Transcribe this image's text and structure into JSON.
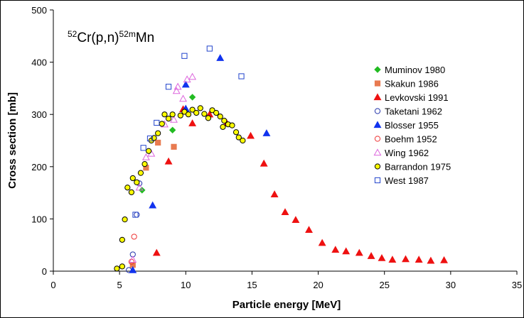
{
  "chart_data": {
    "type": "scatter",
    "title_parts": {
      "pre_sup": "52",
      "reaction": "Cr(p,n)",
      "post_sup": "52m",
      "product": "Mn"
    },
    "xlabel": "Particle  energy [MeV]",
    "ylabel": "Cross section [mb]",
    "xlim": [
      0,
      35
    ],
    "ylim": [
      0,
      500
    ],
    "xticks": [
      "0",
      "5",
      "10",
      "15",
      "20",
      "25",
      "30",
      "35"
    ],
    "yticks": [
      "0",
      "100",
      "200",
      "300",
      "400",
      "500"
    ],
    "legend_position": "right",
    "series": [
      {
        "name": "Muminov 1980",
        "marker": "diamond",
        "color": "#22bb22",
        "fill": true,
        "points": [
          [
            6.7,
            155
          ],
          [
            9.0,
            270
          ],
          [
            10.5,
            333
          ]
        ]
      },
      {
        "name": "Skakun 1986",
        "marker": "square",
        "color": "#e87a50",
        "fill": true,
        "points": [
          [
            6.0,
            12
          ],
          [
            7.0,
            198
          ],
          [
            7.9,
            246
          ],
          [
            9.1,
            238
          ]
        ]
      },
      {
        "name": "Levkovski 1991",
        "marker": "triangle",
        "color": "#ee1111",
        "fill": true,
        "points": [
          [
            7.8,
            35
          ],
          [
            8.7,
            210
          ],
          [
            9.8,
            310
          ],
          [
            10.5,
            283
          ],
          [
            11.8,
            300
          ],
          [
            13.1,
            283
          ],
          [
            14.9,
            259
          ],
          [
            15.9,
            206
          ],
          [
            16.7,
            147
          ],
          [
            17.5,
            113
          ],
          [
            18.3,
            98
          ],
          [
            19.3,
            79
          ],
          [
            20.3,
            54
          ],
          [
            21.3,
            41
          ],
          [
            22.1,
            38
          ],
          [
            23.1,
            35
          ],
          [
            24.0,
            29
          ],
          [
            24.8,
            25
          ],
          [
            25.6,
            22
          ],
          [
            26.6,
            23
          ],
          [
            27.6,
            22
          ],
          [
            28.5,
            20
          ],
          [
            29.5,
            21
          ]
        ]
      },
      {
        "name": "Taketani 1962",
        "marker": "circle",
        "color": "#2233aa",
        "fill": false,
        "points": [
          [
            5.7,
            2
          ],
          [
            6.0,
            32
          ],
          [
            6.3,
            108
          ],
          [
            6.5,
            168
          ]
        ]
      },
      {
        "name": "Blosser 1955",
        "marker": "triangle",
        "color": "#1133ee",
        "fill": true,
        "points": [
          [
            6.0,
            2
          ],
          [
            7.5,
            126
          ],
          [
            10.0,
            311
          ],
          [
            10.0,
            357
          ],
          [
            12.6,
            408
          ],
          [
            16.1,
            264
          ]
        ]
      },
      {
        "name": "Boehm 1952",
        "marker": "circle",
        "color": "#ee3333",
        "fill": false,
        "points": [
          [
            5.9,
            18
          ],
          [
            6.1,
            66
          ]
        ]
      },
      {
        "name": "Wing 1962",
        "marker": "triangle",
        "color": "#dd66dd",
        "fill": false,
        "points": [
          [
            6.0,
            22
          ],
          [
            6.5,
            160
          ],
          [
            7.0,
            218
          ],
          [
            7.4,
            225
          ],
          [
            8.4,
            281
          ],
          [
            9.1,
            290
          ],
          [
            9.3,
            345
          ],
          [
            9.4,
            353
          ],
          [
            9.8,
            330
          ],
          [
            10.1,
            367
          ],
          [
            10.5,
            372
          ]
        ]
      },
      {
        "name": "Barrandon 1975",
        "marker": "circle",
        "color": "#000000",
        "fillColor": "#ffff00",
        "fill": true,
        "points": [
          [
            4.8,
            5
          ],
          [
            5.2,
            9
          ],
          [
            5.2,
            60
          ],
          [
            5.4,
            99
          ],
          [
            5.6,
            160
          ],
          [
            5.9,
            151
          ],
          [
            6.0,
            178
          ],
          [
            6.3,
            170
          ],
          [
            6.6,
            188
          ],
          [
            6.9,
            205
          ],
          [
            7.2,
            230
          ],
          [
            7.4,
            250
          ],
          [
            7.6,
            255
          ],
          [
            7.9,
            264
          ],
          [
            8.2,
            282
          ],
          [
            8.4,
            300
          ],
          [
            8.7,
            292
          ],
          [
            9.0,
            300
          ],
          [
            9.6,
            298
          ],
          [
            9.9,
            305
          ],
          [
            10.2,
            300
          ],
          [
            10.5,
            309
          ],
          [
            10.8,
            303
          ],
          [
            11.1,
            312
          ],
          [
            11.4,
            301
          ],
          [
            11.7,
            293
          ],
          [
            12.0,
            308
          ],
          [
            12.3,
            303
          ],
          [
            12.6,
            296
          ],
          [
            12.9,
            288
          ],
          [
            13.2,
            281
          ],
          [
            13.5,
            279
          ],
          [
            13.8,
            266
          ],
          [
            14.0,
            256
          ],
          [
            14.3,
            250
          ],
          [
            12.8,
            276
          ]
        ]
      },
      {
        "name": "West 1987",
        "marker": "square",
        "color": "#2244cc",
        "fill": false,
        "points": [
          [
            6.2,
            108
          ],
          [
            6.8,
            236
          ],
          [
            7.3,
            254
          ],
          [
            7.8,
            284
          ],
          [
            8.7,
            353
          ],
          [
            9.9,
            412
          ],
          [
            11.8,
            426
          ],
          [
            14.2,
            373
          ]
        ]
      }
    ]
  }
}
